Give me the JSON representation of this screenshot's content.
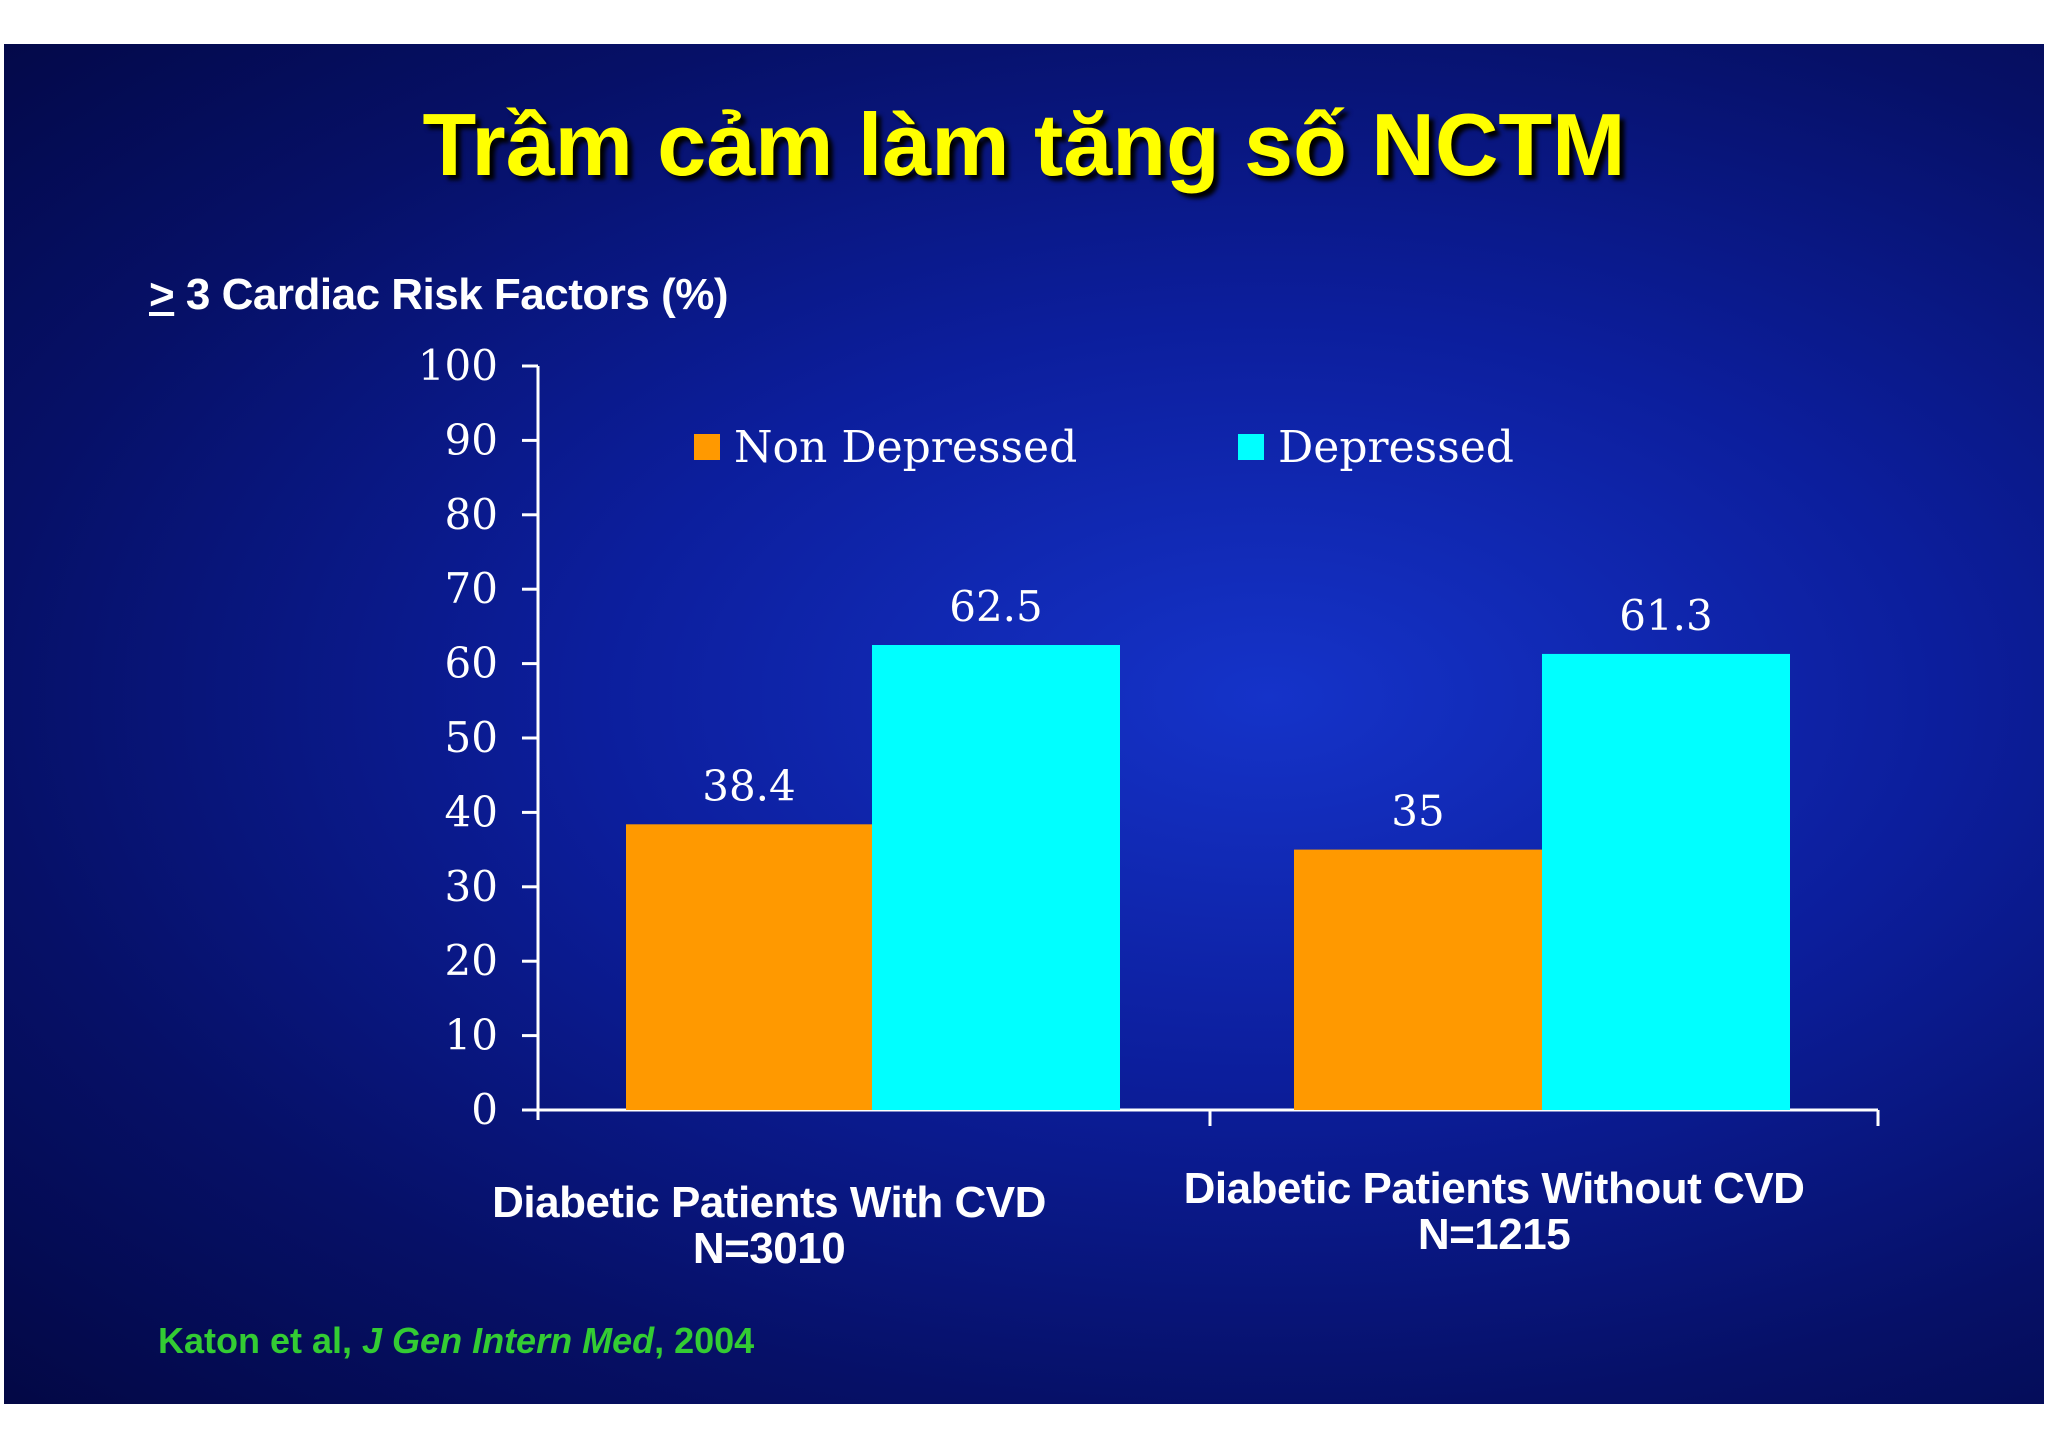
{
  "slide": {
    "title": "Trầm cảm làm tăng số NCTM",
    "citation": {
      "authors": "Katon et al, ",
      "journal": "J Gen Intern Med",
      "year": ", 2004"
    }
  },
  "colors": {
    "non_depressed": "#ff9900",
    "depressed": "#00ffff",
    "title": "#ffff00",
    "citation": "#33cc33",
    "axis": "#ffffff"
  },
  "chart_data": {
    "type": "bar",
    "ylabel_prefix": ">",
    "ylabel_rest": " 3 Cardiac Risk Factors  (%)",
    "ylim": [
      0,
      100
    ],
    "yticks": [
      "0",
      "10",
      "20",
      "30",
      "40",
      "50",
      "60",
      "70",
      "80",
      "90",
      "100"
    ],
    "categories": [
      {
        "line1": "Diabetic Patients With CVD",
        "line2": "N=3010"
      },
      {
        "line1": "Diabetic Patients Without CVD",
        "line2": "N=1215"
      }
    ],
    "series": [
      {
        "name": "Non Depressed",
        "values": [
          38.4,
          35
        ],
        "labels": [
          "38.4",
          "35"
        ]
      },
      {
        "name": "Depressed",
        "values": [
          62.5,
          61.3
        ],
        "labels": [
          "62.5",
          "61.3"
        ]
      }
    ],
    "legend_position": "top",
    "grid": false
  }
}
